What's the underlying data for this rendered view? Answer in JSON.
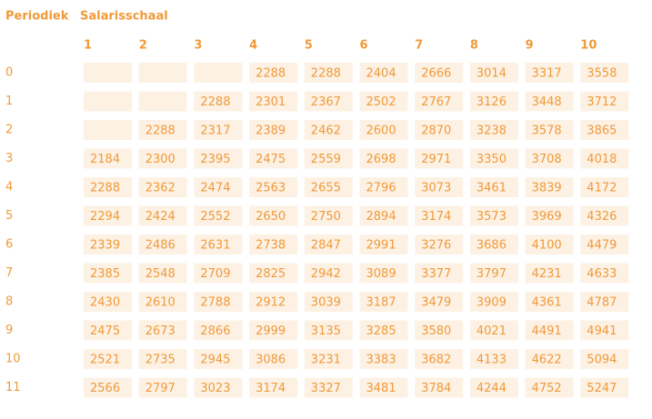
{
  "header": {
    "row_title": "Periodiek",
    "column_title": "Salarisschaal"
  },
  "table": {
    "columns": [
      1,
      2,
      3,
      4,
      5,
      6,
      7,
      8,
      9,
      10
    ],
    "rows": [
      {
        "label": "0",
        "cells": [
          null,
          null,
          null,
          2288,
          2288,
          2404,
          2666,
          3014,
          3317,
          3558
        ]
      },
      {
        "label": "1",
        "cells": [
          null,
          null,
          2288,
          2301,
          2367,
          2502,
          2767,
          3126,
          3448,
          3712
        ]
      },
      {
        "label": "2",
        "cells": [
          null,
          2288,
          2317,
          2389,
          2462,
          2600,
          2870,
          3238,
          3578,
          3865
        ]
      },
      {
        "label": "3",
        "cells": [
          2184,
          2300,
          2395,
          2475,
          2559,
          2698,
          2971,
          3350,
          3708,
          4018
        ]
      },
      {
        "label": "4",
        "cells": [
          2288,
          2362,
          2474,
          2563,
          2655,
          2796,
          3073,
          3461,
          3839,
          4172
        ]
      },
      {
        "label": "5",
        "cells": [
          2294,
          2424,
          2552,
          2650,
          2750,
          2894,
          3174,
          3573,
          3969,
          4326
        ]
      },
      {
        "label": "6",
        "cells": [
          2339,
          2486,
          2631,
          2738,
          2847,
          2991,
          3276,
          3686,
          4100,
          4479
        ]
      },
      {
        "label": "7",
        "cells": [
          2385,
          2548,
          2709,
          2825,
          2942,
          3089,
          3377,
          3797,
          4231,
          4633
        ]
      },
      {
        "label": "8",
        "cells": [
          2430,
          2610,
          2788,
          2912,
          3039,
          3187,
          3479,
          3909,
          4361,
          4787
        ]
      },
      {
        "label": "9",
        "cells": [
          2475,
          2673,
          2866,
          2999,
          3135,
          3285,
          3580,
          4021,
          4491,
          4941
        ]
      },
      {
        "label": "10",
        "cells": [
          2521,
          2735,
          2945,
          3086,
          3231,
          3383,
          3682,
          4133,
          4622,
          5094
        ]
      },
      {
        "label": "11",
        "cells": [
          2566,
          2797,
          3023,
          3174,
          3327,
          3481,
          3784,
          4244,
          4752,
          5247
        ]
      }
    ]
  }
}
